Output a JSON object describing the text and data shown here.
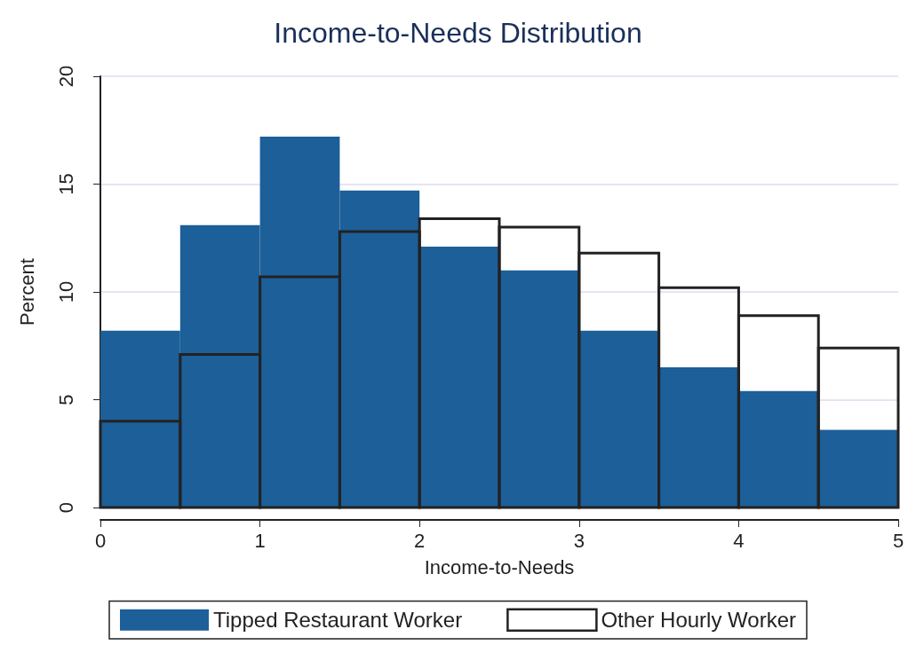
{
  "chart_data": {
    "type": "histogram",
    "title": "Income-to-Needs Distribution",
    "xlabel": "Income-to-Needs",
    "ylabel": "Percent",
    "bins": [
      0,
      0.5,
      1,
      1.5,
      2,
      2.5,
      3,
      3.5,
      4,
      4.5,
      5
    ],
    "series": [
      {
        "name": "Tipped Restaurant Worker",
        "color": "#1c5f99",
        "values": [
          8.2,
          13.1,
          17.2,
          14.7,
          12.1,
          11.0,
          8.2,
          6.5,
          5.4,
          3.6
        ]
      },
      {
        "name": "Other Hourly Worker",
        "color": "#222222",
        "values": [
          4.0,
          7.1,
          10.7,
          12.8,
          13.4,
          13.0,
          11.8,
          10.2,
          8.9,
          7.4
        ]
      }
    ],
    "xlim": [
      0,
      5
    ],
    "xticks": [
      0,
      1,
      2,
      3,
      4,
      5
    ],
    "ylim": [
      0,
      20
    ],
    "yticks": [
      0,
      5,
      10,
      15,
      20
    ],
    "grid": "y",
    "legend": "bottom"
  }
}
